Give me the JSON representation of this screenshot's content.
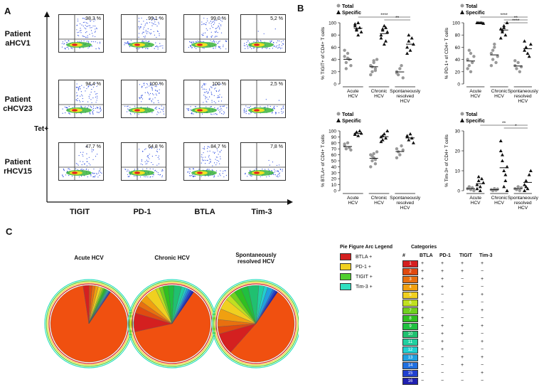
{
  "panel_a": {
    "letter": "A",
    "tet_label": "Tet+",
    "patients": [
      "Patient aHCV1",
      "Patient cHCV23",
      "Patient rHCV15"
    ],
    "markers": [
      "TIGIT",
      "PD-1",
      "BTLA",
      "Tim-3"
    ],
    "percentages": [
      [
        "98,3 %",
        "99,1 %",
        "99,0 %",
        "5,2 %"
      ],
      [
        "94,4 %",
        "100 %",
        "100 %",
        "2,5 %"
      ],
      [
        "47,7 %",
        "64,8 %",
        "84,7 %",
        "7,8 %"
      ]
    ]
  },
  "panel_b": {
    "letter": "B",
    "legend": [
      "Total",
      "Specific"
    ],
    "groups": [
      "Acute HCV",
      "Chronic HCV",
      "Spontaneously resolved HCV"
    ]
  },
  "chart_data": [
    {
      "type": "scatter",
      "ylabel": "% TIGIT+ of CD4+ T cells",
      "ylim": [
        0,
        100
      ],
      "yticks": [
        0,
        20,
        40,
        60,
        80,
        100
      ],
      "categories": [
        "Acute HCV",
        "Chronic HCV",
        "Spontaneously resolved HCV"
      ],
      "series": [
        {
          "name": "Total",
          "values": [
            [
              45,
              35,
              50,
              40,
              30,
              55,
              25,
              42
            ],
            [
              30,
              20,
              35,
              25,
              40,
              15,
              28,
              38,
              22
            ],
            [
              20,
              15,
              25,
              30,
              10,
              18
            ]
          ]
        },
        {
          "name": "Specific",
          "values": [
            [
              95,
              88,
              100,
              92,
              85,
              98,
              90,
              80
            ],
            [
              80,
              90,
              95,
              70,
              85,
              75,
              88,
              65,
              92
            ],
            [
              60,
              70,
              55,
              75,
              65,
              50,
              80
            ]
          ]
        }
      ],
      "annotations": [
        "****",
        "**"
      ]
    },
    {
      "type": "scatter",
      "ylabel": "% PD-1+ of CD4+ T cells",
      "ylim": [
        0,
        100
      ],
      "yticks": [
        0,
        20,
        40,
        60,
        80,
        100
      ],
      "categories": [
        "Acute HCV",
        "Chronic HCV",
        "Spontaneously resolved HCV"
      ],
      "series": [
        {
          "name": "Total",
          "values": [
            [
              40,
              30,
              50,
              35,
              45,
              25,
              55,
              20
            ],
            [
              50,
              40,
              60,
              35,
              45,
              30,
              55,
              65
            ],
            [
              30,
              25,
              35,
              20,
              28,
              38
            ]
          ]
        },
        {
          "name": "Specific",
          "values": [
            [
              100,
              100,
              100,
              100,
              99,
              100
            ],
            [
              90,
              85,
              95,
              80,
              100,
              75,
              88,
              92
            ],
            [
              55,
              60,
              50,
              45,
              65,
              70
            ]
          ]
        }
      ],
      "annotations": [
        "****",
        "**",
        "****"
      ]
    },
    {
      "type": "scatter",
      "ylabel": "% BTLA+ of CD4+ T cells",
      "ylim": [
        0,
        100
      ],
      "yticks": [
        0,
        10,
        20,
        30,
        40,
        50,
        60,
        70,
        80,
        90,
        100
      ],
      "categories": [
        "Acute HCV",
        "Chronic HCV",
        "Spontaneously resolved HCV"
      ],
      "series": [
        {
          "name": "Total",
          "values": [
            [
              75,
              70,
              80,
              72,
              68,
              78
            ],
            [
              60,
              50,
              55,
              45,
              65,
              40,
              58,
              62,
              52
            ],
            [
              70,
              65,
              60,
              75,
              68,
              55
            ]
          ]
        },
        {
          "name": "Specific",
          "values": [
            [
              95,
              98,
              92,
              100,
              96,
              94
            ],
            [
              90,
              85,
              95,
              88,
              100,
              82,
              92
            ],
            [
              90,
              85,
              95,
              88,
              80,
              92
            ]
          ]
        }
      ],
      "annotations": []
    },
    {
      "type": "scatter",
      "ylabel": "% Tim-3+ of CD4+ T cells",
      "ylim": [
        0,
        30
      ],
      "yticks": [
        0,
        10,
        20,
        30
      ],
      "categories": [
        "Acute HCV",
        "Chronic HCV",
        "Spontaneously resolved HCV"
      ],
      "series": [
        {
          "name": "Total",
          "values": [
            [
              1,
              2,
              0.5,
              1.5,
              0,
              1
            ],
            [
              0.5,
              0,
              1,
              0.2,
              0.8
            ],
            [
              1,
              0.5,
              2,
              0,
              1.5
            ]
          ]
        },
        {
          "name": "Specific",
          "values": [
            [
              3,
              5,
              2,
              6,
              4,
              1,
              7,
              0
            ],
            [
              20,
              15,
              10,
              5,
              12,
              25,
              18,
              2,
              8,
              0
            ],
            [
              3,
              5,
              1,
              8,
              10,
              0,
              2
            ]
          ]
        }
      ],
      "annotations": [
        "**",
        "*"
      ]
    }
  ],
  "panel_c": {
    "letter": "C",
    "pie_titles": [
      "Acute HCV",
      "Chronic HCV",
      "Spontaneously resolved HCV"
    ],
    "arc_legend_title": "Pie Figure Arc Legend",
    "arc_legend": [
      {
        "label": "BTLA +",
        "color": "#d42020"
      },
      {
        "label": "PD-1 +",
        "color": "#f0d020"
      },
      {
        "label": "TIGIT +",
        "color": "#50d030"
      },
      {
        "label": "Tim-3 +",
        "color": "#30e0c0"
      }
    ],
    "categories_title": "Categories",
    "category_headers": [
      "#",
      "BTLA",
      "PD-1",
      "TIGIT",
      "Tim-3"
    ],
    "categories": [
      {
        "n": "1",
        "color": "#d42020",
        "vals": [
          "+",
          "+",
          "+",
          "+"
        ]
      },
      {
        "n": "2",
        "color": "#e04a10",
        "vals": [
          "+",
          "+",
          "+",
          "−"
        ]
      },
      {
        "n": "3",
        "color": "#e87010",
        "vals": [
          "+",
          "+",
          "−",
          "+"
        ]
      },
      {
        "n": "4",
        "color": "#f0a010",
        "vals": [
          "+",
          "+",
          "−",
          "−"
        ]
      },
      {
        "n": "5",
        "color": "#f0d020",
        "vals": [
          "+",
          "−",
          "+",
          "+"
        ]
      },
      {
        "n": "6",
        "color": "#c0e020",
        "vals": [
          "+",
          "−",
          "+",
          "−"
        ]
      },
      {
        "n": "7",
        "color": "#70d020",
        "vals": [
          "+",
          "−",
          "−",
          "+"
        ]
      },
      {
        "n": "8",
        "color": "#30c020",
        "vals": [
          "+",
          "−",
          "−",
          "−"
        ]
      },
      {
        "n": "9",
        "color": "#20c040",
        "vals": [
          "−",
          "+",
          "+",
          "+"
        ]
      },
      {
        "n": "10",
        "color": "#20c070",
        "vals": [
          "−",
          "+",
          "+",
          "−"
        ]
      },
      {
        "n": "11",
        "color": "#20d0a0",
        "vals": [
          "−",
          "+",
          "−",
          "+"
        ]
      },
      {
        "n": "12",
        "color": "#20d0d0",
        "vals": [
          "−",
          "+",
          "−",
          "−"
        ]
      },
      {
        "n": "13",
        "color": "#20a0e0",
        "vals": [
          "−",
          "−",
          "+",
          "+"
        ]
      },
      {
        "n": "14",
        "color": "#2070e0",
        "vals": [
          "−",
          "−",
          "+",
          "−"
        ]
      },
      {
        "n": "15",
        "color": "#2040d0",
        "vals": [
          "−",
          "−",
          "−",
          "+"
        ]
      },
      {
        "n": "16",
        "color": "#2020b0",
        "vals": [
          "−",
          "−",
          "−",
          "−"
        ]
      }
    ],
    "pie_slices": [
      [
        2,
        1,
        1,
        1,
        1,
        0.5,
        0.5,
        0.5,
        0.3,
        0.3,
        0.2,
        0.2,
        0.2,
        0.2,
        0.2,
        0.2
      ],
      [
        5,
        2,
        1.5,
        2,
        3,
        1,
        1,
        1.5,
        1.5,
        2,
        1,
        0.5,
        0.5,
        0.5,
        0.5,
        0.5
      ],
      [
        6,
        2,
        2,
        3,
        3,
        1.5,
        1.5,
        2,
        2,
        3,
        1.5,
        1,
        1.5,
        0.5,
        0.5,
        0.5
      ]
    ],
    "pie_main_share": [
      88,
      62,
      52
    ]
  }
}
